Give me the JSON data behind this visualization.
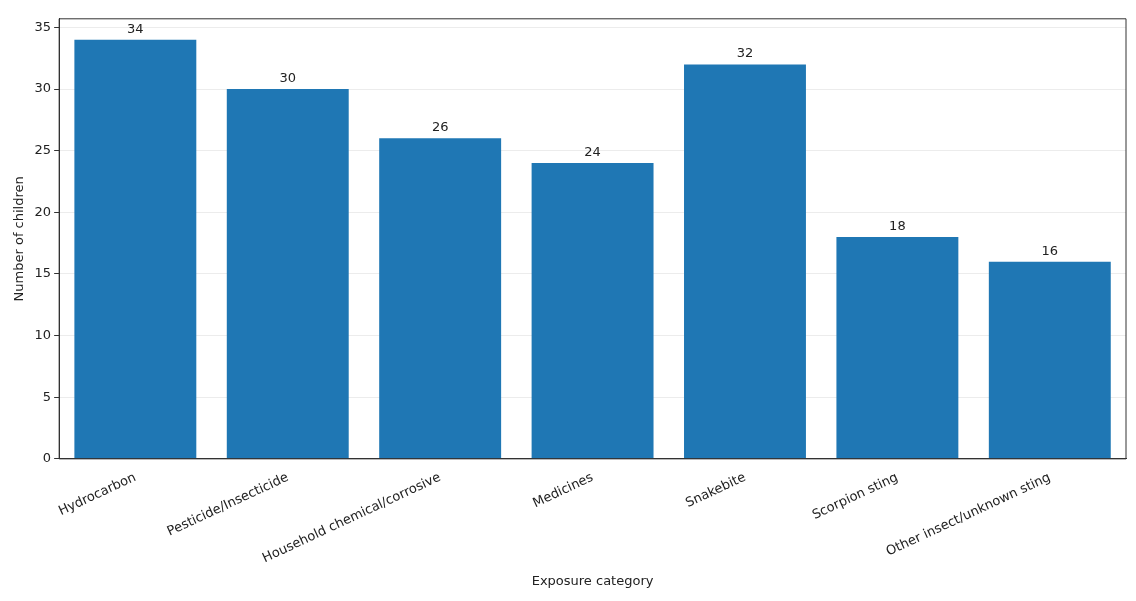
{
  "chart_data": {
    "type": "bar",
    "categories": [
      "Hydrocarbon",
      "Pesticide/Insecticide",
      "Household chemical/corrosive",
      "Medicines",
      "Snakebite",
      "Scorpion sting",
      "Other insect/unknown sting"
    ],
    "values": [
      34,
      30,
      26,
      24,
      32,
      18,
      16
    ],
    "color": "#1f77b4",
    "xlabel": "Exposure category",
    "ylabel": "Number of children",
    "ylim": [
      0,
      35.7
    ],
    "yticks": [
      0,
      5,
      10,
      15,
      20,
      25,
      30,
      35
    ],
    "grid": "y",
    "data_labels": true
  }
}
